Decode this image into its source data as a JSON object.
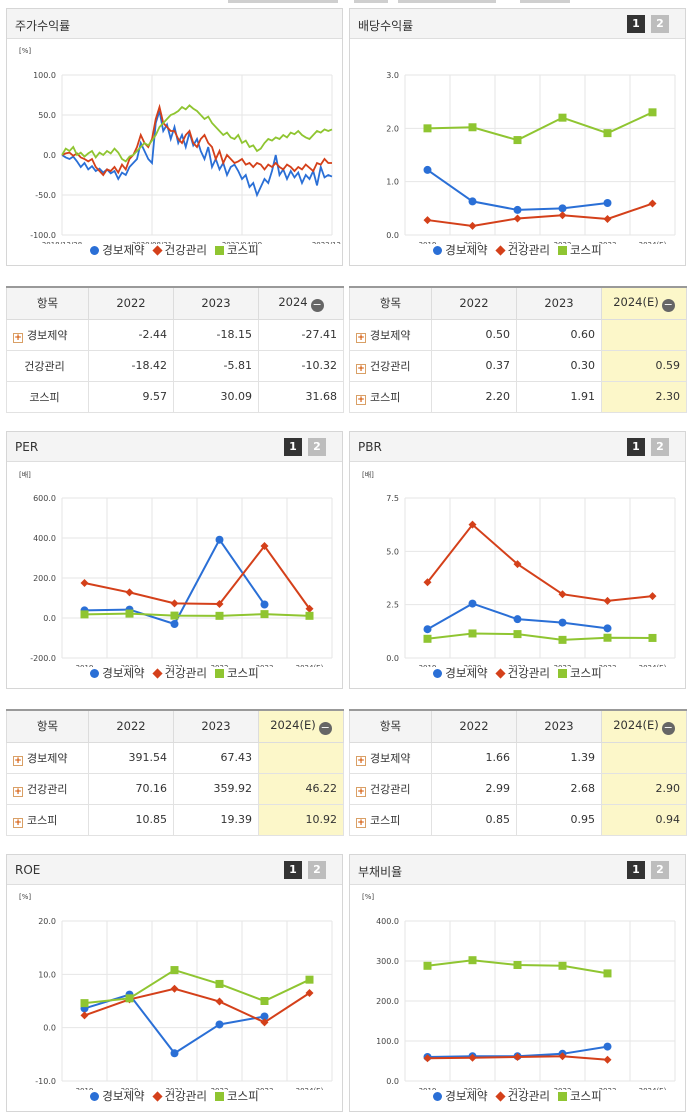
{
  "colors": {
    "s1": "#2a6fd6",
    "s2": "#d4401a",
    "s3": "#8fc531",
    "grid": "#e6e6e6"
  },
  "legend": [
    {
      "name": "경보제약",
      "shape": "circle",
      "color": "#2a6fd6"
    },
    {
      "name": "건강관리",
      "shape": "diamond",
      "color": "#d4401a"
    },
    {
      "name": "코스피",
      "shape": "square",
      "color": "#8fc531"
    }
  ],
  "toggles": [
    "1",
    "2"
  ],
  "panels": {
    "stock": {
      "title": "주가수익률",
      "unit": "[%]"
    },
    "dividend": {
      "title": "배당수익률"
    },
    "per": {
      "title": "PER",
      "unit": "[배]"
    },
    "pbr": {
      "title": "PBR",
      "unit": "[배]"
    },
    "roe": {
      "title": "ROE",
      "unit": "[%]"
    },
    "debt": {
      "title": "부채비율",
      "unit": "[%]"
    }
  },
  "chart_data": [
    {
      "id": "stock",
      "type": "line",
      "title": "주가수익률",
      "ylabel": "[%]",
      "ylim": [
        -100,
        100
      ],
      "yticks": [
        "100.0",
        "50.0",
        "0.0",
        "-50.0",
        "-100.0"
      ],
      "xticks": [
        "2018/12/28",
        "2020/08/31",
        "2022/04/29",
        "2023/12/28"
      ],
      "series": [
        {
          "name": "경보제약",
          "values": [
            0,
            -3,
            -5,
            -2,
            -8,
            -15,
            -10,
            -18,
            -14,
            -20,
            -17,
            -22,
            -18,
            -23,
            -20,
            -30,
            -22,
            -25,
            -15,
            -10,
            -5,
            15,
            5,
            -5,
            -10,
            40,
            55,
            30,
            38,
            20,
            35,
            15,
            25,
            10,
            28,
            12,
            20,
            5,
            -5,
            10,
            -15,
            -5,
            -18,
            -10,
            -25,
            -15,
            -12,
            -20,
            -30,
            -25,
            -40,
            -35,
            -50,
            -40,
            -30,
            -35,
            -20,
            0,
            -25,
            -18,
            -30,
            -20,
            -28,
            -22,
            -35,
            -25,
            -30,
            -20,
            -38,
            -15,
            -28,
            -25,
            -27
          ]
        },
        {
          "name": "건강관리",
          "values": [
            0,
            2,
            3,
            -1,
            2,
            -3,
            -5,
            -8,
            -5,
            -15,
            -20,
            -25,
            -18,
            -20,
            -15,
            -22,
            -12,
            -18,
            -5,
            0,
            10,
            25,
            15,
            10,
            20,
            45,
            60,
            40,
            35,
            30,
            30,
            20,
            15,
            25,
            30,
            15,
            10,
            20,
            25,
            15,
            10,
            -5,
            5,
            -10,
            0,
            -5,
            -10,
            -8,
            -5,
            -12,
            -10,
            -15,
            -10,
            -12,
            -18,
            -12,
            -15,
            -10,
            -15,
            -18,
            -12,
            -15,
            -20,
            -15,
            -18,
            -12,
            -16,
            -20,
            -10,
            -12,
            -5,
            -10,
            -10
          ]
        },
        {
          "name": "코스피",
          "values": [
            0,
            8,
            5,
            10,
            0,
            3,
            -2,
            2,
            5,
            -3,
            3,
            0,
            5,
            2,
            8,
            3,
            -5,
            -8,
            -2,
            0,
            5,
            10,
            15,
            12,
            18,
            25,
            35,
            40,
            45,
            50,
            52,
            55,
            60,
            57,
            62,
            58,
            55,
            50,
            45,
            48,
            40,
            35,
            30,
            25,
            28,
            22,
            20,
            25,
            15,
            18,
            10,
            12,
            5,
            8,
            15,
            20,
            18,
            22,
            20,
            25,
            22,
            28,
            26,
            30,
            25,
            22,
            20,
            25,
            30,
            28,
            32,
            30,
            32
          ]
        }
      ]
    },
    {
      "id": "dividend",
      "type": "line",
      "title": "배당수익률",
      "categories": [
        "2019",
        "2020",
        "2021",
        "2022",
        "2023",
        "2024(E)"
      ],
      "ylim": [
        0,
        3
      ],
      "yticks": [
        "3.0",
        "2.0",
        "1.0",
        "0.0"
      ],
      "series": [
        {
          "name": "경보제약",
          "values": [
            1.22,
            0.63,
            0.47,
            0.5,
            0.6,
            null
          ]
        },
        {
          "name": "건강관리",
          "values": [
            0.28,
            0.17,
            0.31,
            0.37,
            0.3,
            0.59
          ]
        },
        {
          "name": "코스피",
          "values": [
            2.0,
            2.02,
            1.78,
            2.2,
            1.91,
            2.3
          ]
        }
      ]
    },
    {
      "id": "per",
      "type": "line",
      "title": "PER",
      "ylabel": "[배]",
      "categories": [
        "2019",
        "2020",
        "2021",
        "2022",
        "2023",
        "2024(E)"
      ],
      "ylim": [
        -200,
        600
      ],
      "yticks": [
        "600.0",
        "400.0",
        "200.0",
        "0.0",
        "-200.0"
      ],
      "series": [
        {
          "name": "경보제약",
          "values": [
            38,
            42,
            -30,
            391.54,
            67.43,
            null
          ]
        },
        {
          "name": "건강관리",
          "values": [
            175,
            128,
            73,
            70.16,
            359.92,
            46.22
          ]
        },
        {
          "name": "코스피",
          "values": [
            18,
            22,
            12,
            10.85,
            19.39,
            10.92
          ]
        }
      ]
    },
    {
      "id": "pbr",
      "type": "line",
      "title": "PBR",
      "ylabel": "[배]",
      "categories": [
        "2019",
        "2020",
        "2021",
        "2022",
        "2023",
        "2024(E)"
      ],
      "ylim": [
        0,
        7.5
      ],
      "yticks": [
        "7.5",
        "5.0",
        "2.5",
        "0.0"
      ],
      "series": [
        {
          "name": "경보제약",
          "values": [
            1.35,
            2.55,
            1.82,
            1.66,
            1.39,
            null
          ]
        },
        {
          "name": "건강관리",
          "values": [
            3.55,
            6.25,
            4.4,
            2.99,
            2.68,
            2.9
          ]
        },
        {
          "name": "코스피",
          "values": [
            0.9,
            1.15,
            1.12,
            0.85,
            0.95,
            0.94
          ]
        }
      ]
    },
    {
      "id": "roe",
      "type": "line",
      "title": "ROE",
      "ylabel": "[%]",
      "categories": [
        "2019",
        "2020",
        "2021",
        "2022",
        "2023",
        "2024(E)"
      ],
      "ylim": [
        -10,
        20
      ],
      "yticks": [
        "20.0",
        "10.0",
        "0.0",
        "-10.0"
      ],
      "series": [
        {
          "name": "경보제약",
          "values": [
            3.6,
            6.2,
            -4.8,
            0.6,
            2.1,
            null
          ]
        },
        {
          "name": "건강관리",
          "values": [
            2.3,
            5.3,
            7.3,
            4.9,
            1.0,
            6.5
          ]
        },
        {
          "name": "코스피",
          "values": [
            4.6,
            5.5,
            10.8,
            8.2,
            5.0,
            9.0
          ]
        }
      ]
    },
    {
      "id": "debt",
      "type": "line",
      "title": "부채비율",
      "ylabel": "[%]",
      "categories": [
        "2019",
        "2020",
        "2021",
        "2022",
        "2023",
        "2024(E)"
      ],
      "ylim": [
        0,
        400
      ],
      "yticks": [
        "400.0",
        "300.0",
        "200.0",
        "100.0",
        "0.0"
      ],
      "series": [
        {
          "name": "경보제약",
          "values": [
            60,
            62,
            62,
            68,
            86,
            null
          ]
        },
        {
          "name": "건강관리",
          "values": [
            57,
            58,
            60,
            62,
            53,
            null
          ]
        },
        {
          "name": "코스피",
          "values": [
            288,
            302,
            290,
            288,
            269,
            null
          ]
        }
      ]
    }
  ],
  "tables": [
    {
      "id": "stock",
      "header": [
        "항목",
        "2022",
        "2023",
        "2024"
      ],
      "collapse": "−",
      "estimate_col": -1,
      "rows": [
        {
          "label": "경보제약",
          "expand": true,
          "values": [
            "-2.44",
            "-18.15",
            "-27.41"
          ]
        },
        {
          "label": "건강관리",
          "expand": false,
          "values": [
            "-18.42",
            "-5.81",
            "-10.32"
          ]
        },
        {
          "label": "코스피",
          "expand": false,
          "values": [
            "9.57",
            "30.09",
            "31.68"
          ]
        }
      ]
    },
    {
      "id": "dividend",
      "header": [
        "항목",
        "2022",
        "2023",
        "2024(E)"
      ],
      "collapse": "−",
      "estimate_col": 2,
      "rows": [
        {
          "label": "경보제약",
          "expand": true,
          "values": [
            "0.50",
            "0.60",
            ""
          ]
        },
        {
          "label": "건강관리",
          "expand": true,
          "values": [
            "0.37",
            "0.30",
            "0.59"
          ]
        },
        {
          "label": "코스피",
          "expand": true,
          "values": [
            "2.20",
            "1.91",
            "2.30"
          ]
        }
      ]
    },
    {
      "id": "per",
      "header": [
        "항목",
        "2022",
        "2023",
        "2024(E)"
      ],
      "collapse": "−",
      "estimate_col": 2,
      "rows": [
        {
          "label": "경보제약",
          "expand": true,
          "values": [
            "391.54",
            "67.43",
            ""
          ]
        },
        {
          "label": "건강관리",
          "expand": true,
          "values": [
            "70.16",
            "359.92",
            "46.22"
          ]
        },
        {
          "label": "코스피",
          "expand": true,
          "values": [
            "10.85",
            "19.39",
            "10.92"
          ]
        }
      ]
    },
    {
      "id": "pbr",
      "header": [
        "항목",
        "2022",
        "2023",
        "2024(E)"
      ],
      "collapse": "−",
      "estimate_col": 2,
      "rows": [
        {
          "label": "경보제약",
          "expand": true,
          "values": [
            "1.66",
            "1.39",
            ""
          ]
        },
        {
          "label": "건강관리",
          "expand": true,
          "values": [
            "2.99",
            "2.68",
            "2.90"
          ]
        },
        {
          "label": "코스피",
          "expand": true,
          "values": [
            "0.85",
            "0.95",
            "0.94"
          ]
        }
      ]
    }
  ]
}
